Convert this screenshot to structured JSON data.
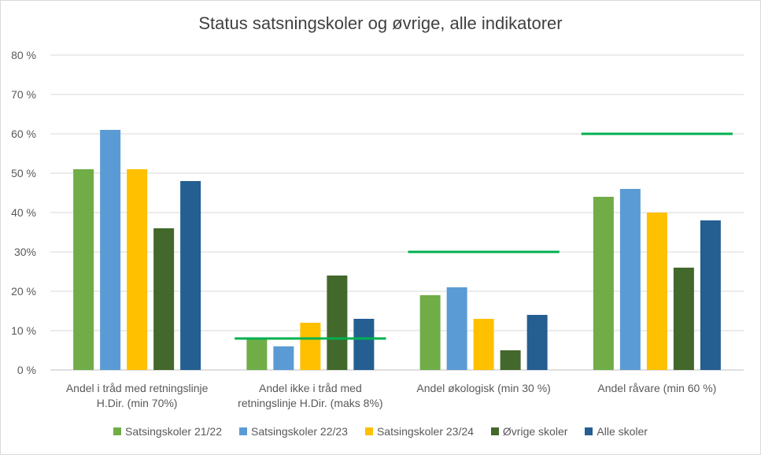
{
  "chart_data": {
    "type": "bar",
    "title": "Status satsningskoler og øvrige, alle indikatorer",
    "categories": [
      [
        "Andel i tråd med retningslinje",
        "H.Dir. (min 70%)"
      ],
      [
        "Andel ikke i tråd med",
        "retningslinje H.Dir. (maks 8%)"
      ],
      [
        "Andel økologisk (min 30 %)"
      ],
      [
        "Andel råvare (min 60 %)"
      ]
    ],
    "series": [
      {
        "name": "Satsingskoler 21/22",
        "color": "#70ad47",
        "values": [
          51,
          8,
          19,
          44
        ]
      },
      {
        "name": "Satsingskoler 22/23",
        "color": "#5b9bd5",
        "values": [
          61,
          6,
          21,
          46
        ]
      },
      {
        "name": "Satsingskoler 23/24",
        "color": "#ffc000",
        "values": [
          51,
          12,
          13,
          40
        ]
      },
      {
        "name": "Øvrige skoler",
        "color": "#43682b",
        "values": [
          36,
          24,
          5,
          26
        ]
      },
      {
        "name": "Alle skoler",
        "color": "#255e91",
        "values": [
          48,
          13,
          14,
          38
        ]
      }
    ],
    "targets": [
      {
        "category_index": 1,
        "value": 8
      },
      {
        "category_index": 2,
        "value": 30
      },
      {
        "category_index": 3,
        "value": 60
      }
    ],
    "target_color": "#00b050",
    "ylim": [
      0,
      80
    ],
    "yticks": [
      "0 %",
      "10 %",
      "20 %",
      "30%",
      "40 %",
      "50 %",
      "60 %",
      "70 %",
      "80 %"
    ],
    "grid": true,
    "legend": "bottom"
  }
}
